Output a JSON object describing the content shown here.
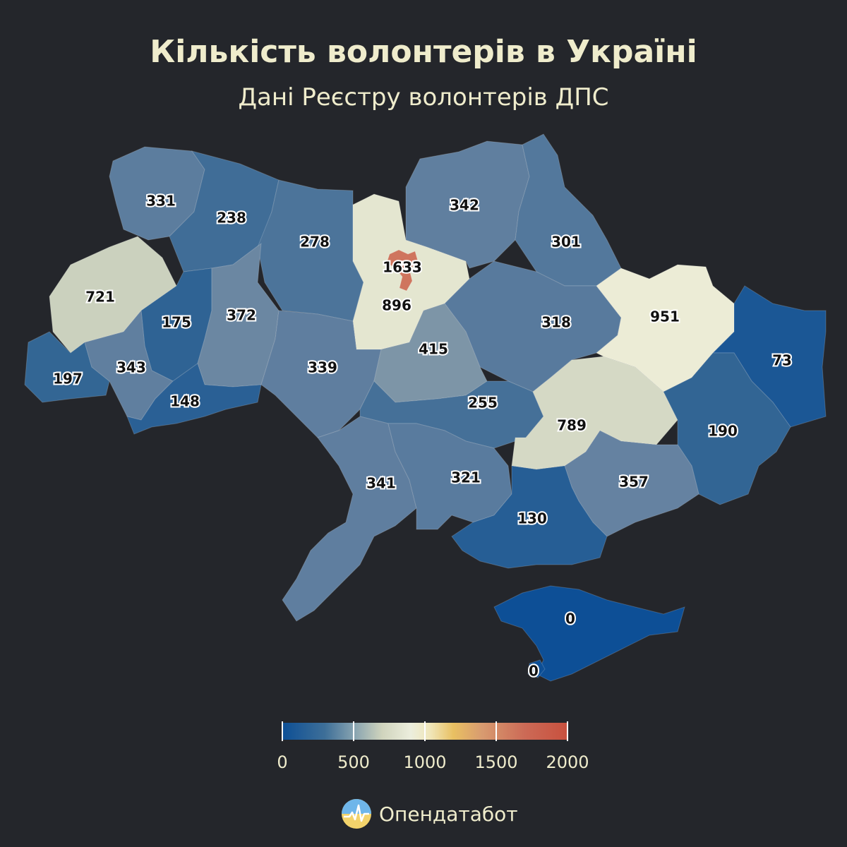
{
  "title": "Кількість волонтерів в Україні",
  "subtitle": "Дані Реєстру волонтерів ДПС",
  "legend": {
    "min": 0,
    "max": 2000,
    "ticks": [
      "0",
      "500",
      "1000",
      "1500",
      "2000"
    ]
  },
  "brand": "Опендатабот",
  "regions": [
    {
      "id": "volyn",
      "value": 331
    },
    {
      "id": "rivne",
      "value": 238
    },
    {
      "id": "zhytomyr",
      "value": 278
    },
    {
      "id": "kyiv_city",
      "value": 1633
    },
    {
      "id": "kyiv_oblast",
      "value": 896
    },
    {
      "id": "chernihiv",
      "value": 342
    },
    {
      "id": "sumy",
      "value": 301
    },
    {
      "id": "lviv",
      "value": 721
    },
    {
      "id": "ternopil",
      "value": 175
    },
    {
      "id": "khmelnytskyi",
      "value": 372
    },
    {
      "id": "poltava",
      "value": 318
    },
    {
      "id": "kharkiv",
      "value": 951
    },
    {
      "id": "luhansk",
      "value": 73
    },
    {
      "id": "zakarpattia",
      "value": 197
    },
    {
      "id": "ivano_frankivsk",
      "value": 343
    },
    {
      "id": "chernivtsi",
      "value": 148
    },
    {
      "id": "vinnytsia",
      "value": 339
    },
    {
      "id": "cherkasy",
      "value": 415
    },
    {
      "id": "kirovohrad",
      "value": 255
    },
    {
      "id": "dnipropetrovsk",
      "value": 789
    },
    {
      "id": "donetsk",
      "value": 190
    },
    {
      "id": "odesa",
      "value": 341
    },
    {
      "id": "mykolaiv",
      "value": 321
    },
    {
      "id": "zaporizhzhia",
      "value": 357
    },
    {
      "id": "kherson",
      "value": 130
    },
    {
      "id": "crimea",
      "value": 0
    },
    {
      "id": "sevastopol",
      "value": 0
    }
  ]
}
